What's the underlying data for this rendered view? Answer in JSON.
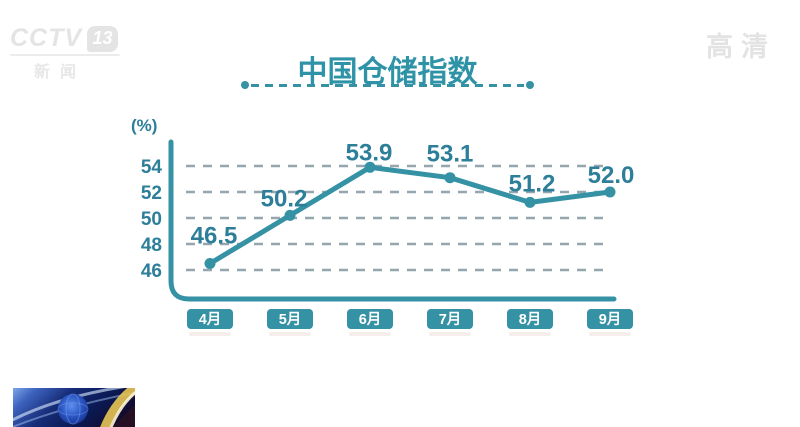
{
  "watermarks": {
    "channel_logo": {
      "name": "CCTV",
      "number": "13",
      "subtitle": "新闻"
    },
    "hd_badge": "高清"
  },
  "chart_data": {
    "type": "line",
    "title": "中国仓储指数",
    "ylabel": "(%)",
    "categories": [
      "4月",
      "5月",
      "6月",
      "7月",
      "8月",
      "9月"
    ],
    "values": [
      46.5,
      50.2,
      53.9,
      53.1,
      51.2,
      52.0
    ],
    "point_labels": [
      "46.5",
      "50.2",
      "53.9",
      "53.1",
      "51.2",
      "52.0"
    ],
    "y_ticks": [
      "54",
      "52",
      "50",
      "48",
      "46"
    ],
    "ylim": [
      45,
      55
    ],
    "grid": "horizontal-dashed",
    "legend": "none",
    "colors": {
      "line": "#3492a4",
      "marker": "#3492a4",
      "value_text": "#2c7e99",
      "gridline": "#95a6ae",
      "title_text": "#2e93a6",
      "category_box_bg": "#3492a4",
      "category_box_text": "#ffffff"
    }
  }
}
